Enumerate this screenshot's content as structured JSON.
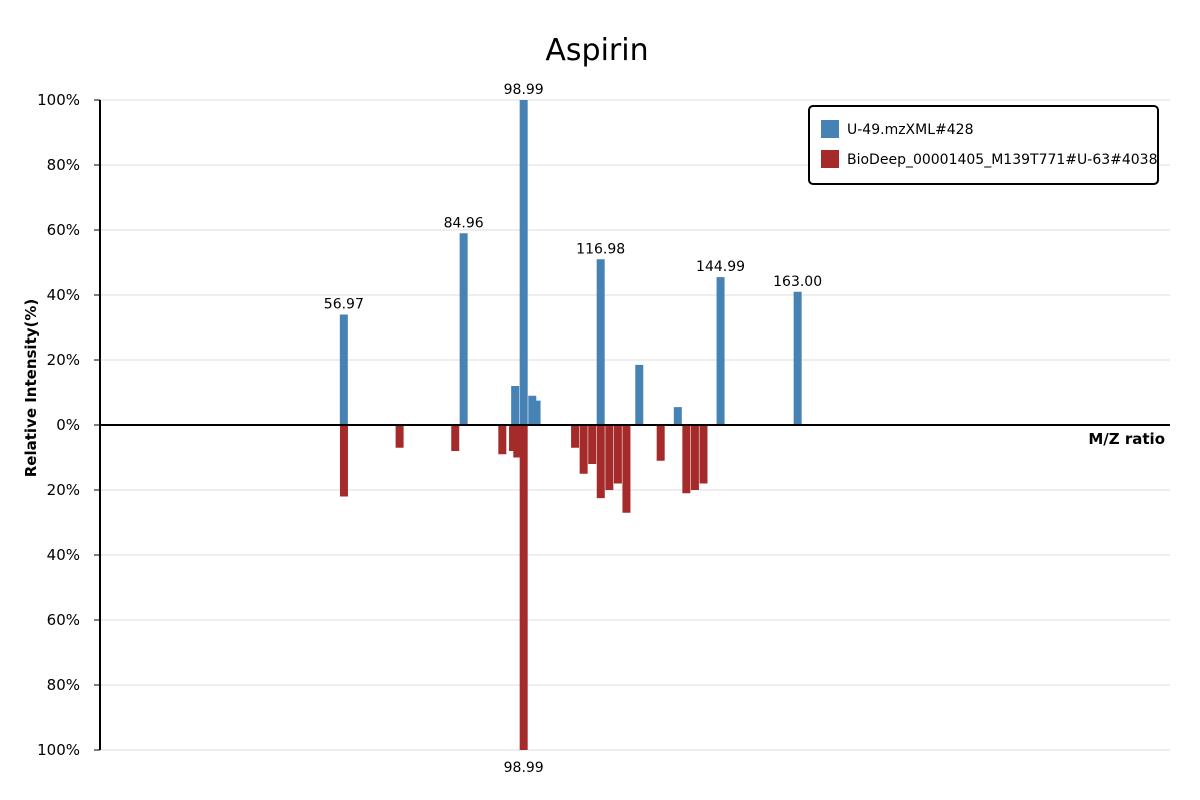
{
  "chart_data": {
    "type": "bar",
    "title": "Aspirin",
    "xlabel": "M/Z ratio",
    "ylabel": "Relative Intensity(%)",
    "y_ticks_top": [
      "100%",
      "80%",
      "60%",
      "40%",
      "20%",
      "0%"
    ],
    "y_ticks_bottom": [
      "20%",
      "40%",
      "60%",
      "80%",
      "100%"
    ],
    "grid": true,
    "legend_position": "top-right",
    "mz_range": [
      0,
      250
    ],
    "series": [
      {
        "name": "U-49.mzXML#428",
        "color": "#4682B4",
        "direction": "up",
        "peaks": [
          {
            "mz": 56.97,
            "intensity": 34,
            "label": "56.97"
          },
          {
            "mz": 84.96,
            "intensity": 59,
            "label": "84.96"
          },
          {
            "mz": 97.0,
            "intensity": 12
          },
          {
            "mz": 98.99,
            "intensity": 100,
            "label": "98.99"
          },
          {
            "mz": 101.0,
            "intensity": 9
          },
          {
            "mz": 102.0,
            "intensity": 7.5
          },
          {
            "mz": 116.98,
            "intensity": 51,
            "label": "116.98"
          },
          {
            "mz": 126.0,
            "intensity": 18.5
          },
          {
            "mz": 135.0,
            "intensity": 5.5
          },
          {
            "mz": 144.99,
            "intensity": 45.5,
            "label": "144.99"
          },
          {
            "mz": 163.0,
            "intensity": 41,
            "label": "163.00"
          }
        ]
      },
      {
        "name": "BioDeep_00001405_M139T771#U-63#4038",
        "color": "#A52A2A",
        "direction": "down",
        "peaks": [
          {
            "mz": 57.0,
            "intensity": 22
          },
          {
            "mz": 70.0,
            "intensity": 7
          },
          {
            "mz": 83.0,
            "intensity": 8
          },
          {
            "mz": 94.0,
            "intensity": 9
          },
          {
            "mz": 96.5,
            "intensity": 8
          },
          {
            "mz": 97.5,
            "intensity": 10
          },
          {
            "mz": 98.99,
            "intensity": 100,
            "label": "98.99"
          },
          {
            "mz": 111.0,
            "intensity": 7
          },
          {
            "mz": 113.0,
            "intensity": 15
          },
          {
            "mz": 115.0,
            "intensity": 12
          },
          {
            "mz": 117.0,
            "intensity": 22.5
          },
          {
            "mz": 119.0,
            "intensity": 20
          },
          {
            "mz": 121.0,
            "intensity": 18
          },
          {
            "mz": 123.0,
            "intensity": 27
          },
          {
            "mz": 131.0,
            "intensity": 11
          },
          {
            "mz": 137.0,
            "intensity": 21
          },
          {
            "mz": 139.0,
            "intensity": 20
          },
          {
            "mz": 141.0,
            "intensity": 18
          }
        ]
      }
    ]
  }
}
